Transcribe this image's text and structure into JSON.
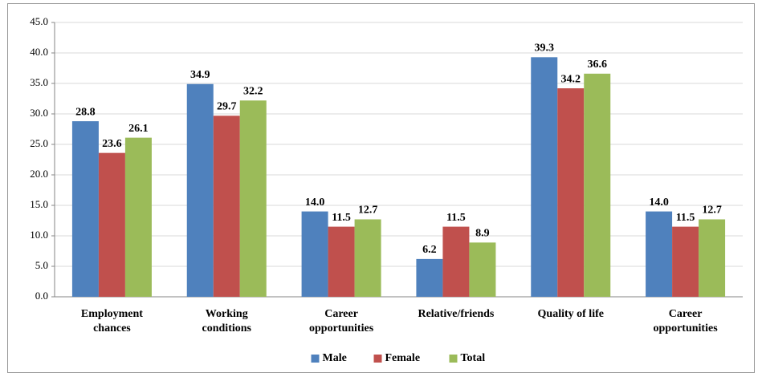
{
  "chart_data": {
    "type": "bar",
    "categories": [
      [
        "Employment",
        "chances"
      ],
      [
        "Working",
        "conditions"
      ],
      [
        "Career",
        "opportunities"
      ],
      [
        "Relative/friends"
      ],
      [
        "Quality of life"
      ],
      [
        "Career",
        "opportunities"
      ]
    ],
    "series": [
      {
        "name": "Male",
        "color": "#4f81bd",
        "values": [
          28.8,
          34.9,
          14,
          6.2,
          39.3,
          14
        ],
        "value_labels": [
          "28.8",
          "34.9",
          "14.0",
          "6.2",
          "39.3",
          "14.0"
        ]
      },
      {
        "name": "Female",
        "color": "#c0504d",
        "values": [
          23.6,
          29.7,
          11.5,
          11.5,
          34.2,
          11.5
        ],
        "value_labels": [
          "23.6",
          "29.7",
          "11.5",
          "11.5",
          "34.2",
          "11.5"
        ]
      },
      {
        "name": "Total",
        "color": "#9bbb59",
        "values": [
          26.1,
          32.2,
          12.7,
          8.9,
          36.6,
          12.7
        ],
        "value_labels": [
          "26.1",
          "32.2",
          "12.7",
          "8.9",
          "36.6",
          "12.7"
        ]
      }
    ],
    "ylim": [
      0,
      45
    ],
    "yticks": [
      {
        "value": 0,
        "label": "0.0"
      },
      {
        "value": 5,
        "label": "5.0"
      },
      {
        "value": 10,
        "label": "10.0"
      },
      {
        "value": 15,
        "label": "15.0"
      },
      {
        "value": 20,
        "label": "20.0"
      },
      {
        "value": 25,
        "label": "25.0"
      },
      {
        "value": 30,
        "label": "30.0"
      },
      {
        "value": 35,
        "label": "35.0"
      },
      {
        "value": 40,
        "label": "40.0"
      },
      {
        "value": 45,
        "label": "45.0"
      }
    ],
    "grid": true,
    "legend": "bottom"
  }
}
